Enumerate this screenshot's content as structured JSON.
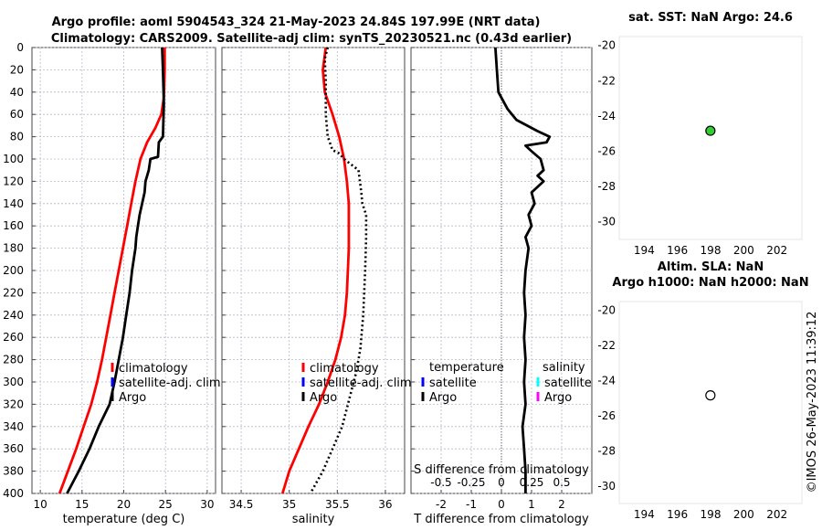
{
  "header": {
    "title_line1": "Argo profile: aoml 5904543_324 21-May-2023 24.84S 197.99E (NRT data)",
    "title_line2": "Climatology: CARS2009. Satellite-adj clim: synTS_20230521.nc (0.43d earlier)"
  },
  "timestamp": "©IMOS 26-May-2023 11:39:12",
  "colors": {
    "climatology": "#ff0000",
    "satellite_adj": "#0000ff",
    "argo": "#000000",
    "salinity_satellite": "#00ffff",
    "salinity_argo": "#ff00ff",
    "sst_marker": "#33cc33"
  },
  "chart_data": [
    {
      "type": "line",
      "title": "",
      "xlabel": "temperature (deg C)",
      "ylabel": "",
      "xlim": [
        9,
        31
      ],
      "ylim": [
        400,
        0
      ],
      "xticks": [
        "10",
        "15",
        "20",
        "25",
        "30"
      ],
      "yticks": [
        "0",
        "20",
        "40",
        "60",
        "80",
        "100",
        "120",
        "140",
        "160",
        "180",
        "200",
        "220",
        "240",
        "260",
        "280",
        "300",
        "320",
        "340",
        "360",
        "380",
        "400"
      ],
      "legend": [
        "climatology",
        "satellite-adj. clim",
        "Argo"
      ],
      "series": [
        {
          "name": "climatology",
          "color": "#ff0000",
          "style": "solid",
          "points": [
            [
              24.9,
              0
            ],
            [
              24.9,
              20
            ],
            [
              24.8,
              45
            ],
            [
              24.5,
              60
            ],
            [
              23.8,
              72
            ],
            [
              22.8,
              85
            ],
            [
              22.0,
              100
            ],
            [
              21.4,
              120
            ],
            [
              20.9,
              140
            ],
            [
              20.4,
              160
            ],
            [
              19.9,
              180
            ],
            [
              19.4,
              200
            ],
            [
              18.9,
              220
            ],
            [
              18.4,
              240
            ],
            [
              17.9,
              260
            ],
            [
              17.4,
              280
            ],
            [
              16.8,
              300
            ],
            [
              16.1,
              320
            ],
            [
              15.2,
              340
            ],
            [
              14.3,
              360
            ],
            [
              13.3,
              380
            ],
            [
              12.3,
              400
            ]
          ]
        },
        {
          "name": "Argo",
          "color": "#000000",
          "style": "solid",
          "points": [
            [
              24.6,
              0
            ],
            [
              24.7,
              20
            ],
            [
              24.8,
              50
            ],
            [
              24.7,
              80
            ],
            [
              24.2,
              85
            ],
            [
              24.1,
              98
            ],
            [
              23.2,
              100
            ],
            [
              23.0,
              110
            ],
            [
              22.6,
              120
            ],
            [
              22.5,
              130
            ],
            [
              22.2,
              140
            ],
            [
              21.9,
              150
            ],
            [
              21.7,
              160
            ],
            [
              21.5,
              170
            ],
            [
              21.4,
              180
            ],
            [
              21.0,
              200
            ],
            [
              20.7,
              220
            ],
            [
              20.3,
              240
            ],
            [
              19.9,
              260
            ],
            [
              19.4,
              280
            ],
            [
              18.9,
              300
            ],
            [
              18.3,
              320
            ],
            [
              17.0,
              340
            ],
            [
              15.9,
              360
            ],
            [
              14.6,
              380
            ],
            [
              13.2,
              400
            ]
          ]
        }
      ]
    },
    {
      "type": "line",
      "title": "",
      "xlabel": "salinity",
      "ylabel": "",
      "xlim": [
        34.3,
        36.2
      ],
      "ylim": [
        400,
        0
      ],
      "xticks": [
        "34.5",
        "35",
        "35.5",
        "36"
      ],
      "legend": [
        "climatology",
        "satellite-adj. clim",
        "Argo"
      ],
      "series": [
        {
          "name": "climatology",
          "color": "#ff0000",
          "style": "solid",
          "points": [
            [
              35.38,
              0
            ],
            [
              35.35,
              20
            ],
            [
              35.37,
              40
            ],
            [
              35.45,
              60
            ],
            [
              35.52,
              80
            ],
            [
              35.57,
              100
            ],
            [
              35.6,
              120
            ],
            [
              35.62,
              140
            ],
            [
              35.62,
              160
            ],
            [
              35.62,
              180
            ],
            [
              35.61,
              200
            ],
            [
              35.6,
              220
            ],
            [
              35.58,
              240
            ],
            [
              35.54,
              260
            ],
            [
              35.48,
              280
            ],
            [
              35.4,
              300
            ],
            [
              35.31,
              320
            ],
            [
              35.2,
              340
            ],
            [
              35.1,
              360
            ],
            [
              35.0,
              380
            ],
            [
              34.93,
              400
            ]
          ]
        },
        {
          "name": "Argo",
          "color": "#000000",
          "style": "dotted",
          "points": [
            [
              35.4,
              0
            ],
            [
              35.37,
              10
            ],
            [
              35.38,
              30
            ],
            [
              35.38,
              60
            ],
            [
              35.4,
              80
            ],
            [
              35.45,
              92
            ],
            [
              35.52,
              95
            ],
            [
              35.57,
              100
            ],
            [
              35.72,
              110
            ],
            [
              35.75,
              130
            ],
            [
              35.76,
              140
            ],
            [
              35.8,
              150
            ],
            [
              35.8,
              170
            ],
            [
              35.79,
              200
            ],
            [
              35.77,
              240
            ],
            [
              35.74,
              270
            ],
            [
              35.7,
              290
            ],
            [
              35.64,
              310
            ],
            [
              35.55,
              340
            ],
            [
              35.45,
              360
            ],
            [
              35.35,
              380
            ],
            [
              35.22,
              400
            ]
          ]
        }
      ]
    },
    {
      "type": "line",
      "title": "",
      "xlabel": "T difference from climatology",
      "xlabel_top": "S difference from climatology",
      "ylabel": "",
      "xlim": [
        -3,
        3
      ],
      "ylim": [
        400,
        0
      ],
      "xticks": [
        "-2",
        "-1",
        "0",
        "1",
        "2"
      ],
      "sticks": [
        "-0.5",
        "-0.25",
        "0",
        "0.25",
        "0.5"
      ],
      "legend_temperature": {
        "title": "temperature",
        "items": [
          "satellite",
          "Argo"
        ]
      },
      "legend_salinity": {
        "title": "salinity",
        "items": [
          "satellite",
          "Argo"
        ]
      },
      "series": [
        {
          "name": "Argo",
          "color": "#000000",
          "style": "solid",
          "points": [
            [
              -0.2,
              0
            ],
            [
              -0.15,
              20
            ],
            [
              -0.1,
              40
            ],
            [
              0.2,
              55
            ],
            [
              0.5,
              65
            ],
            [
              1.2,
              75
            ],
            [
              1.6,
              80
            ],
            [
              1.5,
              85
            ],
            [
              0.8,
              88
            ],
            [
              1.0,
              93
            ],
            [
              1.3,
              100
            ],
            [
              1.4,
              110
            ],
            [
              1.2,
              115
            ],
            [
              1.4,
              120
            ],
            [
              1.0,
              130
            ],
            [
              1.1,
              140
            ],
            [
              0.9,
              150
            ],
            [
              1.0,
              160
            ],
            [
              0.8,
              170
            ],
            [
              0.9,
              180
            ],
            [
              0.8,
              200
            ],
            [
              0.75,
              220
            ],
            [
              0.8,
              240
            ],
            [
              0.75,
              260
            ],
            [
              0.8,
              280
            ],
            [
              0.75,
              300
            ],
            [
              0.8,
              320
            ],
            [
              0.7,
              340
            ],
            [
              0.75,
              360
            ],
            [
              0.8,
              380
            ],
            [
              0.8,
              400
            ]
          ]
        }
      ]
    },
    {
      "type": "scatter",
      "title": "sat. SST: NaN Argo: 24.6",
      "xlim": [
        192.5,
        203.5
      ],
      "ylim": [
        -31,
        -19.5
      ],
      "xticks": [
        "194",
        "196",
        "198",
        "200",
        "202"
      ],
      "yticks": [
        "-20",
        "-22",
        "-24",
        "-26",
        "-28",
        "-30"
      ],
      "points": [
        {
          "x": 197.99,
          "y": -24.84,
          "fill": "#33cc33"
        }
      ]
    },
    {
      "type": "scatter",
      "title": "Altim. SLA: NaN",
      "title2": "Argo h1000: NaN h2000: NaN",
      "xlim": [
        192.5,
        203.5
      ],
      "ylim": [
        -31,
        -19.5
      ],
      "xticks": [
        "194",
        "196",
        "198",
        "200",
        "202"
      ],
      "yticks": [
        "-20",
        "-22",
        "-24",
        "-26",
        "-28",
        "-30"
      ],
      "points": [
        {
          "x": 197.99,
          "y": -24.84,
          "fill": "#ffffff"
        }
      ]
    }
  ]
}
